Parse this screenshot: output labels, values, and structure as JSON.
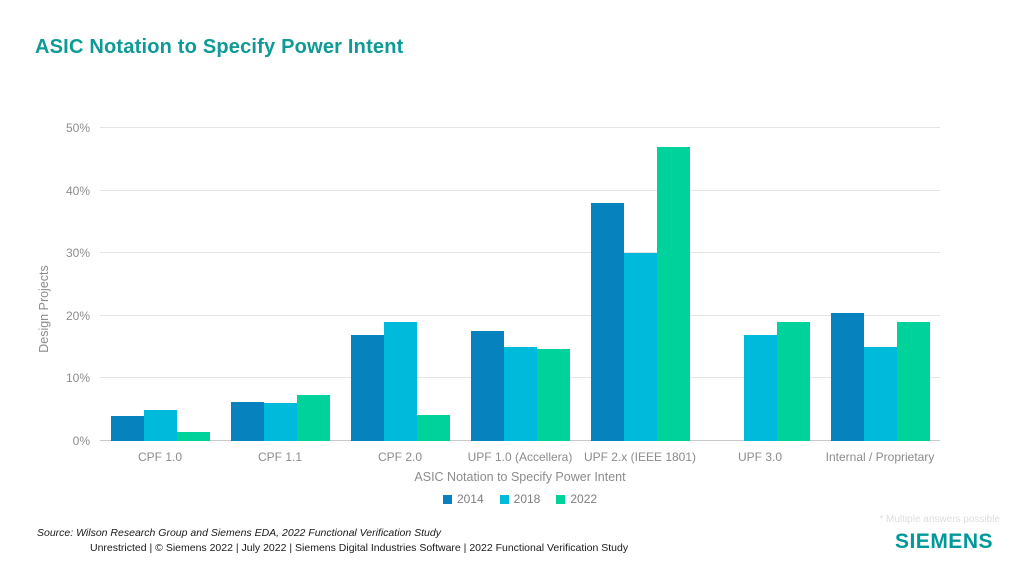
{
  "title": "ASIC Notation to Specify Power Intent",
  "chart_data": {
    "type": "bar",
    "categories": [
      "CPF 1.0",
      "CPF 1.1",
      "CPF 2.0",
      "UPF 1.0 (Accellera)",
      "UPF 2.x (IEEE 1801)",
      "UPF 3.0",
      "Internal / Proprietary"
    ],
    "series": [
      {
        "name": "2014",
        "color": "#0682bf",
        "values": [
          4,
          6.2,
          17,
          17.5,
          38,
          0,
          20.5
        ]
      },
      {
        "name": "2018",
        "color": "#00badc",
        "values": [
          5,
          6,
          19,
          15,
          30,
          17,
          15
        ]
      },
      {
        "name": "2022",
        "color": "#00d29b",
        "values": [
          1.5,
          7.3,
          4.2,
          14.7,
          47,
          19,
          19
        ]
      }
    ],
    "title": "ASIC Notation to Specify Power Intent",
    "xlabel": "ASIC Notation to Specify Power Intent",
    "ylabel": "Design Projects",
    "ylim": [
      0,
      50
    ],
    "ytick_step": 10,
    "yticks": [
      "0%",
      "10%",
      "20%",
      "30%",
      "40%",
      "50%"
    ],
    "grid": "horizontal",
    "legend_position": "bottom"
  },
  "footer": {
    "source": "Source:  Wilson Research Group and Siemens EDA, 2022 Functional Verification Study",
    "classification": "Unrestricted | © Siemens 2022 | July 2022 | Siemens Digital Industries Software | 2022 Functional Verification Study",
    "note": "* Multiple answers possible",
    "logo": "SIEMENS"
  },
  "colors": {
    "title_text": "#0E9B95",
    "logo_text": "#009999",
    "axis_text": "#8c8c8c",
    "gridline": "#e4e4e4",
    "baseline": "#c9c9c9",
    "note_text": "#dedede"
  }
}
